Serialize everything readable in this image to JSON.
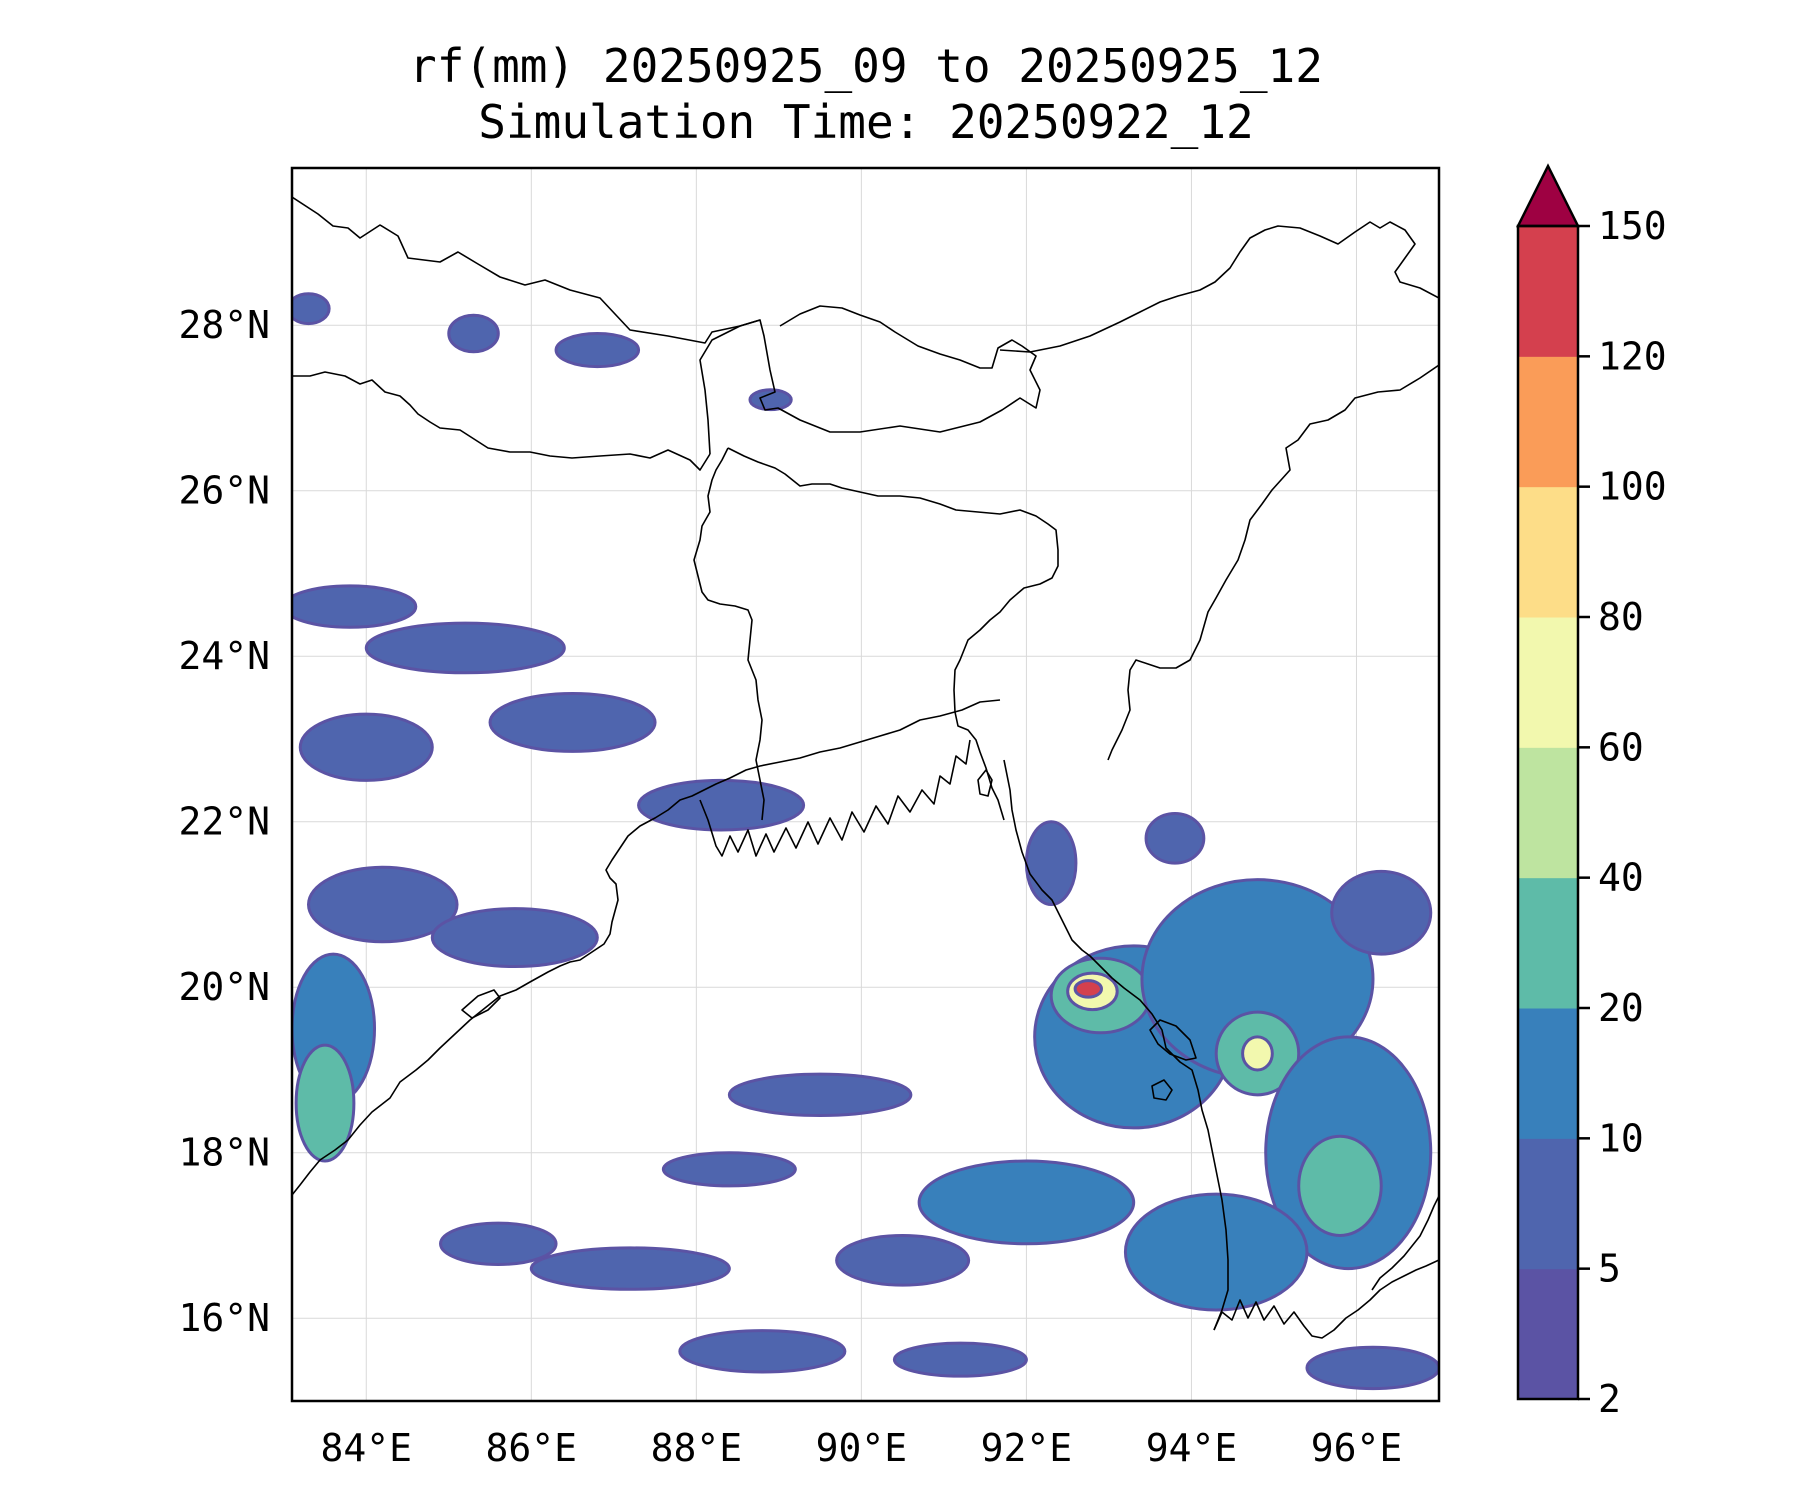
{
  "title": {
    "line1": "rf(mm) 20250925_09 to 20250925_12",
    "line2": "Simulation Time: 20250922_12"
  },
  "map": {
    "lon_range": [
      83.1,
      97.0
    ],
    "lat_range": [
      15.0,
      29.9
    ],
    "x_ticks": [
      {
        "value": 84,
        "label": "84°E"
      },
      {
        "value": 86,
        "label": "86°E"
      },
      {
        "value": 88,
        "label": "88°E"
      },
      {
        "value": 90,
        "label": "90°E"
      },
      {
        "value": 92,
        "label": "92°E"
      },
      {
        "value": 94,
        "label": "94°E"
      },
      {
        "value": 96,
        "label": "96°E"
      }
    ],
    "y_ticks": [
      {
        "value": 16,
        "label": "16°N"
      },
      {
        "value": 18,
        "label": "18°N"
      },
      {
        "value": 20,
        "label": "20°N"
      },
      {
        "value": 22,
        "label": "22°N"
      },
      {
        "value": 24,
        "label": "24°N"
      },
      {
        "value": 26,
        "label": "26°N"
      },
      {
        "value": 28,
        "label": "28°N"
      }
    ],
    "gridlines": true
  },
  "colorbar": {
    "levels": [
      "2",
      "5",
      "10",
      "20",
      "40",
      "60",
      "80",
      "100",
      "120",
      "150"
    ],
    "colors": [
      "#5b53a4",
      "#4f65ae",
      "#3880bb",
      "#5ebba8",
      "#bee4a0",
      "#f2f8ae",
      "#fddd88",
      "#fa9c58",
      "#d4404e"
    ],
    "extend_color": "#9e0142",
    "extend": "max"
  },
  "rain_cells": [
    {
      "lon": 83.3,
      "lat": 28.2,
      "rx": 0.25,
      "ry": 0.18,
      "level": 1
    },
    {
      "lon": 85.3,
      "lat": 27.9,
      "rx": 0.3,
      "ry": 0.22,
      "level": 1
    },
    {
      "lon": 86.8,
      "lat": 27.7,
      "rx": 0.5,
      "ry": 0.2,
      "level": 1
    },
    {
      "lon": 88.9,
      "lat": 27.1,
      "rx": 0.25,
      "ry": 0.12,
      "level": 1
    },
    {
      "lon": 83.8,
      "lat": 24.6,
      "rx": 0.8,
      "ry": 0.25,
      "level": 1
    },
    {
      "lon": 85.2,
      "lat": 24.1,
      "rx": 1.2,
      "ry": 0.3,
      "level": 1
    },
    {
      "lon": 86.5,
      "lat": 23.2,
      "rx": 1.0,
      "ry": 0.35,
      "level": 1
    },
    {
      "lon": 88.3,
      "lat": 22.2,
      "rx": 1.0,
      "ry": 0.3,
      "level": 1
    },
    {
      "lon": 84.0,
      "lat": 22.9,
      "rx": 0.8,
      "ry": 0.4,
      "level": 1
    },
    {
      "lon": 84.2,
      "lat": 21.0,
      "rx": 0.9,
      "ry": 0.45,
      "level": 1
    },
    {
      "lon": 85.8,
      "lat": 20.6,
      "rx": 1.0,
      "ry": 0.35,
      "level": 1
    },
    {
      "lon": 83.6,
      "lat": 19.5,
      "rx": 0.5,
      "ry": 0.9,
      "level": 2
    },
    {
      "lon": 83.5,
      "lat": 18.6,
      "rx": 0.35,
      "ry": 0.7,
      "level": 3
    },
    {
      "lon": 89.5,
      "lat": 18.7,
      "rx": 1.1,
      "ry": 0.25,
      "level": 1
    },
    {
      "lon": 88.4,
      "lat": 17.8,
      "rx": 0.8,
      "ry": 0.2,
      "level": 1
    },
    {
      "lon": 87.2,
      "lat": 16.6,
      "rx": 1.2,
      "ry": 0.25,
      "level": 1
    },
    {
      "lon": 85.6,
      "lat": 16.9,
      "rx": 0.7,
      "ry": 0.25,
      "level": 1
    },
    {
      "lon": 90.5,
      "lat": 16.7,
      "rx": 0.8,
      "ry": 0.3,
      "level": 1
    },
    {
      "lon": 92.0,
      "lat": 17.4,
      "rx": 1.3,
      "ry": 0.5,
      "level": 2
    },
    {
      "lon": 88.8,
      "lat": 15.6,
      "rx": 1.0,
      "ry": 0.25,
      "level": 1
    },
    {
      "lon": 91.2,
      "lat": 15.5,
      "rx": 0.8,
      "ry": 0.2,
      "level": 1
    },
    {
      "lon": 93.3,
      "lat": 19.4,
      "rx": 1.2,
      "ry": 1.1,
      "level": 2
    },
    {
      "lon": 92.9,
      "lat": 19.9,
      "rx": 0.6,
      "ry": 0.45,
      "level": 3
    },
    {
      "lon": 92.8,
      "lat": 19.95,
      "rx": 0.3,
      "ry": 0.22,
      "level": 5
    },
    {
      "lon": 92.75,
      "lat": 19.98,
      "rx": 0.16,
      "ry": 0.1,
      "level": 8
    },
    {
      "lon": 94.8,
      "lat": 20.1,
      "rx": 1.4,
      "ry": 1.2,
      "level": 2
    },
    {
      "lon": 94.8,
      "lat": 19.2,
      "rx": 0.5,
      "ry": 0.5,
      "level": 3
    },
    {
      "lon": 94.8,
      "lat": 19.2,
      "rx": 0.18,
      "ry": 0.2,
      "level": 5
    },
    {
      "lon": 95.9,
      "lat": 18.0,
      "rx": 1.0,
      "ry": 1.4,
      "level": 2
    },
    {
      "lon": 95.8,
      "lat": 17.6,
      "rx": 0.5,
      "ry": 0.6,
      "level": 3
    },
    {
      "lon": 94.3,
      "lat": 16.8,
      "rx": 1.1,
      "ry": 0.7,
      "level": 2
    },
    {
      "lon": 96.2,
      "lat": 15.4,
      "rx": 0.8,
      "ry": 0.25,
      "level": 1
    },
    {
      "lon": 96.3,
      "lat": 20.9,
      "rx": 0.6,
      "ry": 0.5,
      "level": 1
    },
    {
      "lon": 92.3,
      "lat": 21.5,
      "rx": 0.3,
      "ry": 0.5,
      "level": 1
    },
    {
      "lon": 93.8,
      "lat": 21.8,
      "rx": 0.35,
      "ry": 0.3,
      "level": 1
    }
  ]
}
